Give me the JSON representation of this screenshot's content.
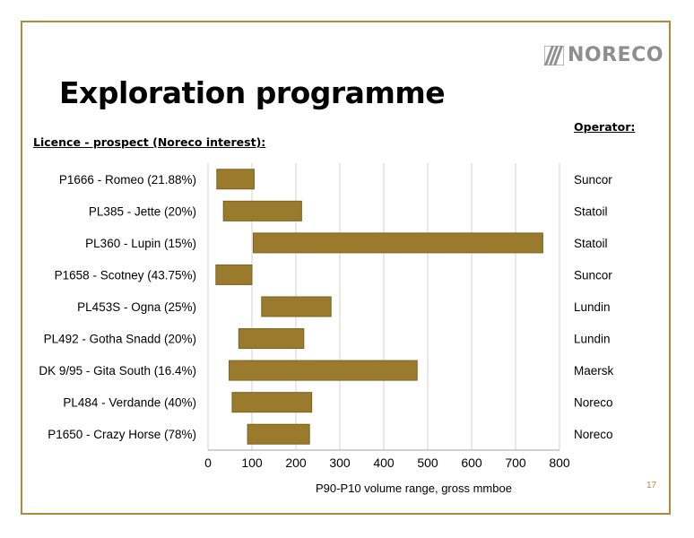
{
  "slide": {
    "title": "Exploration programme",
    "licence_heading": "Licence - prospect (Noreco interest):",
    "operator_heading": "Operator:",
    "logo_text": "NORECO",
    "page_number": "17"
  },
  "colors": {
    "frame": "#b08a3a",
    "bar_fill": "#9a7a2c",
    "bar_stroke": "#7d6222",
    "gridline": "#d0d0d0",
    "logo": "#8e8e8e"
  },
  "chart_data": {
    "type": "bar",
    "orientation": "horizontal-range",
    "categories": [
      "P1666 - Romeo (21.88%)",
      "PL385 - Jette (20%)",
      "PL360 - Lupin (15%)",
      "P1658 - Scotney (43.75%)",
      "PL453S - Ogna (25%)",
      "PL492 - Gotha Snadd (20%)",
      "DK 9/95 - Gita South (16.4%)",
      "PL484 - Verdande (40%)",
      "P1650 - Crazy Horse (78%)"
    ],
    "operators": [
      "Suncor",
      "Statoil",
      "Statoil",
      "Suncor",
      "Lundin",
      "Lundin",
      "Maersk",
      "Noreco",
      "Noreco"
    ],
    "ranges": [
      [
        20,
        105
      ],
      [
        35,
        213
      ],
      [
        103,
        762
      ],
      [
        18,
        100
      ],
      [
        122,
        280
      ],
      [
        70,
        218
      ],
      [
        48,
        476
      ],
      [
        55,
        236
      ],
      [
        90,
        231
      ]
    ],
    "xlabel": "P90-P10 volume range, gross mmboe",
    "xlim": [
      0,
      800
    ],
    "xticks": [
      "0",
      "100",
      "200",
      "300",
      "400",
      "500",
      "600",
      "700",
      "800"
    ],
    "grid": true
  }
}
